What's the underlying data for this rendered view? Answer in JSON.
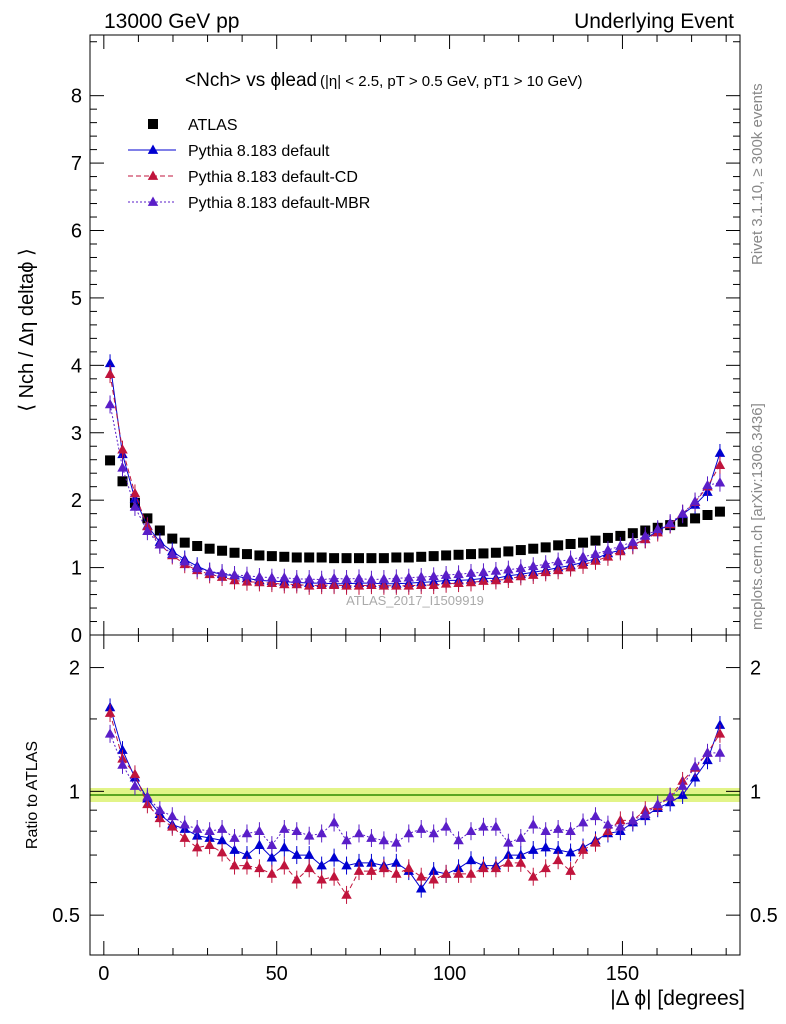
{
  "header": {
    "left": "13000 GeV pp",
    "right": "Underlying Event"
  },
  "right_labels": {
    "rivet": "Rivet 3.1.10, ≥ 300k events",
    "mcplots": "mcplots.cern.ch [arXiv:1306.3436]"
  },
  "watermark": "ATLAS_2017_I1509919",
  "top_panel": {
    "ylabel": "⟨ Nch / Δη deltaϕ ⟩",
    "title_main": "<Nch> vs ϕlead",
    "title_cuts": "(|η| < 2.5, pT > 0.5 GeV, pT1 > 10 GeV)"
  },
  "bottom_panel": {
    "ylabel": "Ratio to ATLAS",
    "xlabel": "|Δ ϕ| [degrees]"
  },
  "colors": {
    "atlas": "#000000",
    "default": "#0000d0",
    "cd": "#c0143c",
    "mbr": "#5a1ec8",
    "band": "#d8f060"
  },
  "chart_data": [
    {
      "type": "scatter",
      "title": "<Nch> vs phi_lead (|eta| < 2.5, pT > 0.5 GeV, pT1 > 10 GeV)",
      "xlabel": "|Δ ϕ| [degrees]",
      "ylabel": "⟨ Nch / Δη deltaϕ ⟩",
      "xlim": [
        -4,
        184
      ],
      "ylim": [
        0,
        8.9
      ],
      "x_ticks": [
        0,
        50,
        100,
        150
      ],
      "y_ticks": [
        0,
        1,
        2,
        3,
        4,
        5,
        6,
        7,
        8
      ],
      "x": [
        1.8,
        5.4,
        9.0,
        12.6,
        16.2,
        19.8,
        23.4,
        27.0,
        30.6,
        34.2,
        37.8,
        41.4,
        45.0,
        48.6,
        52.2,
        55.8,
        59.4,
        63.0,
        66.6,
        70.2,
        73.8,
        77.4,
        81.0,
        84.6,
        88.2,
        91.8,
        95.4,
        99.0,
        102.6,
        106.2,
        109.8,
        113.4,
        117.0,
        120.6,
        124.2,
        127.8,
        131.4,
        135.0,
        138.6,
        142.2,
        145.8,
        149.4,
        153.0,
        156.6,
        160.2,
        163.8,
        167.4,
        171.0,
        174.6,
        178.2
      ],
      "series": [
        {
          "name": "ATLAS",
          "marker": "square",
          "values": [
            2.59,
            2.28,
            1.96,
            1.73,
            1.55,
            1.43,
            1.37,
            1.32,
            1.28,
            1.25,
            1.22,
            1.2,
            1.18,
            1.17,
            1.16,
            1.15,
            1.15,
            1.15,
            1.14,
            1.14,
            1.14,
            1.14,
            1.14,
            1.15,
            1.15,
            1.16,
            1.17,
            1.18,
            1.19,
            1.2,
            1.21,
            1.22,
            1.24,
            1.26,
            1.28,
            1.3,
            1.33,
            1.35,
            1.37,
            1.4,
            1.44,
            1.47,
            1.51,
            1.55,
            1.59,
            1.63,
            1.68,
            1.73,
            1.78,
            1.83
          ]
        },
        {
          "name": "Pythia 8.183 default",
          "marker": "triangle",
          "values": [
            4.03,
            2.68,
            2.02,
            1.62,
            1.38,
            1.24,
            1.12,
            1.02,
            0.94,
            0.9,
            0.88,
            0.84,
            0.81,
            0.8,
            0.79,
            0.78,
            0.77,
            0.77,
            0.76,
            0.76,
            0.77,
            0.77,
            0.76,
            0.76,
            0.77,
            0.78,
            0.79,
            0.81,
            0.81,
            0.82,
            0.84,
            0.84,
            0.88,
            0.9,
            0.93,
            0.96,
            1.0,
            1.03,
            1.08,
            1.13,
            1.21,
            1.26,
            1.34,
            1.42,
            1.55,
            1.64,
            1.79,
            1.93,
            2.12,
            2.7
          ]
        },
        {
          "name": "Pythia 8.183 default-CD",
          "marker": "triangle",
          "values": [
            3.87,
            2.75,
            2.1,
            1.61,
            1.34,
            1.18,
            1.05,
            0.96,
            0.9,
            0.86,
            0.81,
            0.79,
            0.78,
            0.77,
            0.75,
            0.75,
            0.73,
            0.74,
            0.74,
            0.73,
            0.73,
            0.74,
            0.73,
            0.73,
            0.73,
            0.74,
            0.74,
            0.76,
            0.77,
            0.78,
            0.8,
            0.81,
            0.83,
            0.87,
            0.89,
            0.93,
            0.96,
            1.0,
            1.04,
            1.1,
            1.16,
            1.24,
            1.33,
            1.42,
            1.52,
            1.64,
            1.8,
            1.97,
            2.2,
            2.52
          ]
        },
        {
          "name": "Pythia 8.183 default-MBR",
          "marker": "triangle",
          "values": [
            3.42,
            2.48,
            1.9,
            1.54,
            1.34,
            1.2,
            1.09,
            0.99,
            0.94,
            0.92,
            0.89,
            0.88,
            0.86,
            0.85,
            0.85,
            0.83,
            0.83,
            0.82,
            0.84,
            0.83,
            0.84,
            0.82,
            0.83,
            0.84,
            0.85,
            0.86,
            0.87,
            0.89,
            0.9,
            0.92,
            0.93,
            0.95,
            0.97,
            0.99,
            1.02,
            1.05,
            1.09,
            1.12,
            1.16,
            1.2,
            1.26,
            1.32,
            1.38,
            1.47,
            1.57,
            1.66,
            1.8,
            1.98,
            2.22,
            2.26
          ]
        }
      ]
    },
    {
      "type": "scatter",
      "title": "Ratio to ATLAS",
      "xlabel": "|Δ ϕ| [degrees]",
      "ylabel": "Ratio to ATLAS",
      "yscale": "log",
      "xlim": [
        -4,
        184
      ],
      "ylim": [
        0.4,
        2.4
      ],
      "x_ticks": [
        0,
        50,
        100,
        150
      ],
      "y_ticks": [
        0.5,
        1,
        2
      ],
      "reference": 1,
      "x": [
        1.8,
        5.4,
        9.0,
        12.6,
        16.2,
        19.8,
        23.4,
        27.0,
        30.6,
        34.2,
        37.8,
        41.4,
        45.0,
        48.6,
        52.2,
        55.8,
        59.4,
        63.0,
        66.6,
        70.2,
        73.8,
        77.4,
        81.0,
        84.6,
        88.2,
        91.8,
        95.4,
        99.0,
        102.6,
        106.2,
        109.8,
        113.4,
        117.0,
        120.6,
        124.2,
        127.8,
        131.4,
        135.0,
        138.6,
        142.2,
        145.8,
        149.4,
        153.0,
        156.6,
        160.2,
        163.8,
        167.4,
        171.0,
        174.6,
        178.2
      ],
      "series": [
        {
          "name": "Pythia 8.183 default",
          "values": [
            1.6,
            1.26,
            1.08,
            0.96,
            0.88,
            0.83,
            0.81,
            0.78,
            0.77,
            0.76,
            0.72,
            0.7,
            0.74,
            0.69,
            0.73,
            0.7,
            0.7,
            0.66,
            0.69,
            0.66,
            0.67,
            0.67,
            0.66,
            0.67,
            0.64,
            0.58,
            0.64,
            0.63,
            0.65,
            0.68,
            0.66,
            0.66,
            0.7,
            0.7,
            0.72,
            0.73,
            0.72,
            0.71,
            0.73,
            0.76,
            0.79,
            0.8,
            0.84,
            0.87,
            0.91,
            0.94,
            0.98,
            1.08,
            1.19,
            1.45
          ]
        },
        {
          "name": "Pythia 8.183 default-CD",
          "values": [
            1.55,
            1.2,
            1.1,
            0.93,
            0.86,
            0.82,
            0.77,
            0.73,
            0.74,
            0.71,
            0.66,
            0.66,
            0.65,
            0.63,
            0.66,
            0.61,
            0.65,
            0.61,
            0.62,
            0.56,
            0.64,
            0.64,
            0.65,
            0.63,
            0.65,
            0.62,
            0.61,
            0.63,
            0.63,
            0.63,
            0.65,
            0.65,
            0.67,
            0.67,
            0.62,
            0.65,
            0.68,
            0.64,
            0.72,
            0.75,
            0.8,
            0.85,
            0.85,
            0.9,
            0.92,
            0.97,
            1.06,
            1.14,
            1.24,
            1.38
          ]
        },
        {
          "name": "Pythia 8.183 default-MBR",
          "values": [
            1.38,
            1.16,
            1.03,
            0.97,
            0.9,
            0.87,
            0.83,
            0.81,
            0.8,
            0.81,
            0.77,
            0.79,
            0.8,
            0.74,
            0.81,
            0.8,
            0.78,
            0.79,
            0.84,
            0.76,
            0.79,
            0.77,
            0.76,
            0.75,
            0.79,
            0.81,
            0.79,
            0.82,
            0.76,
            0.8,
            0.82,
            0.82,
            0.75,
            0.77,
            0.83,
            0.8,
            0.81,
            0.8,
            0.84,
            0.87,
            0.83,
            0.82,
            0.85,
            0.88,
            0.93,
            0.97,
            1.03,
            1.15,
            1.24,
            1.24
          ]
        }
      ]
    }
  ]
}
